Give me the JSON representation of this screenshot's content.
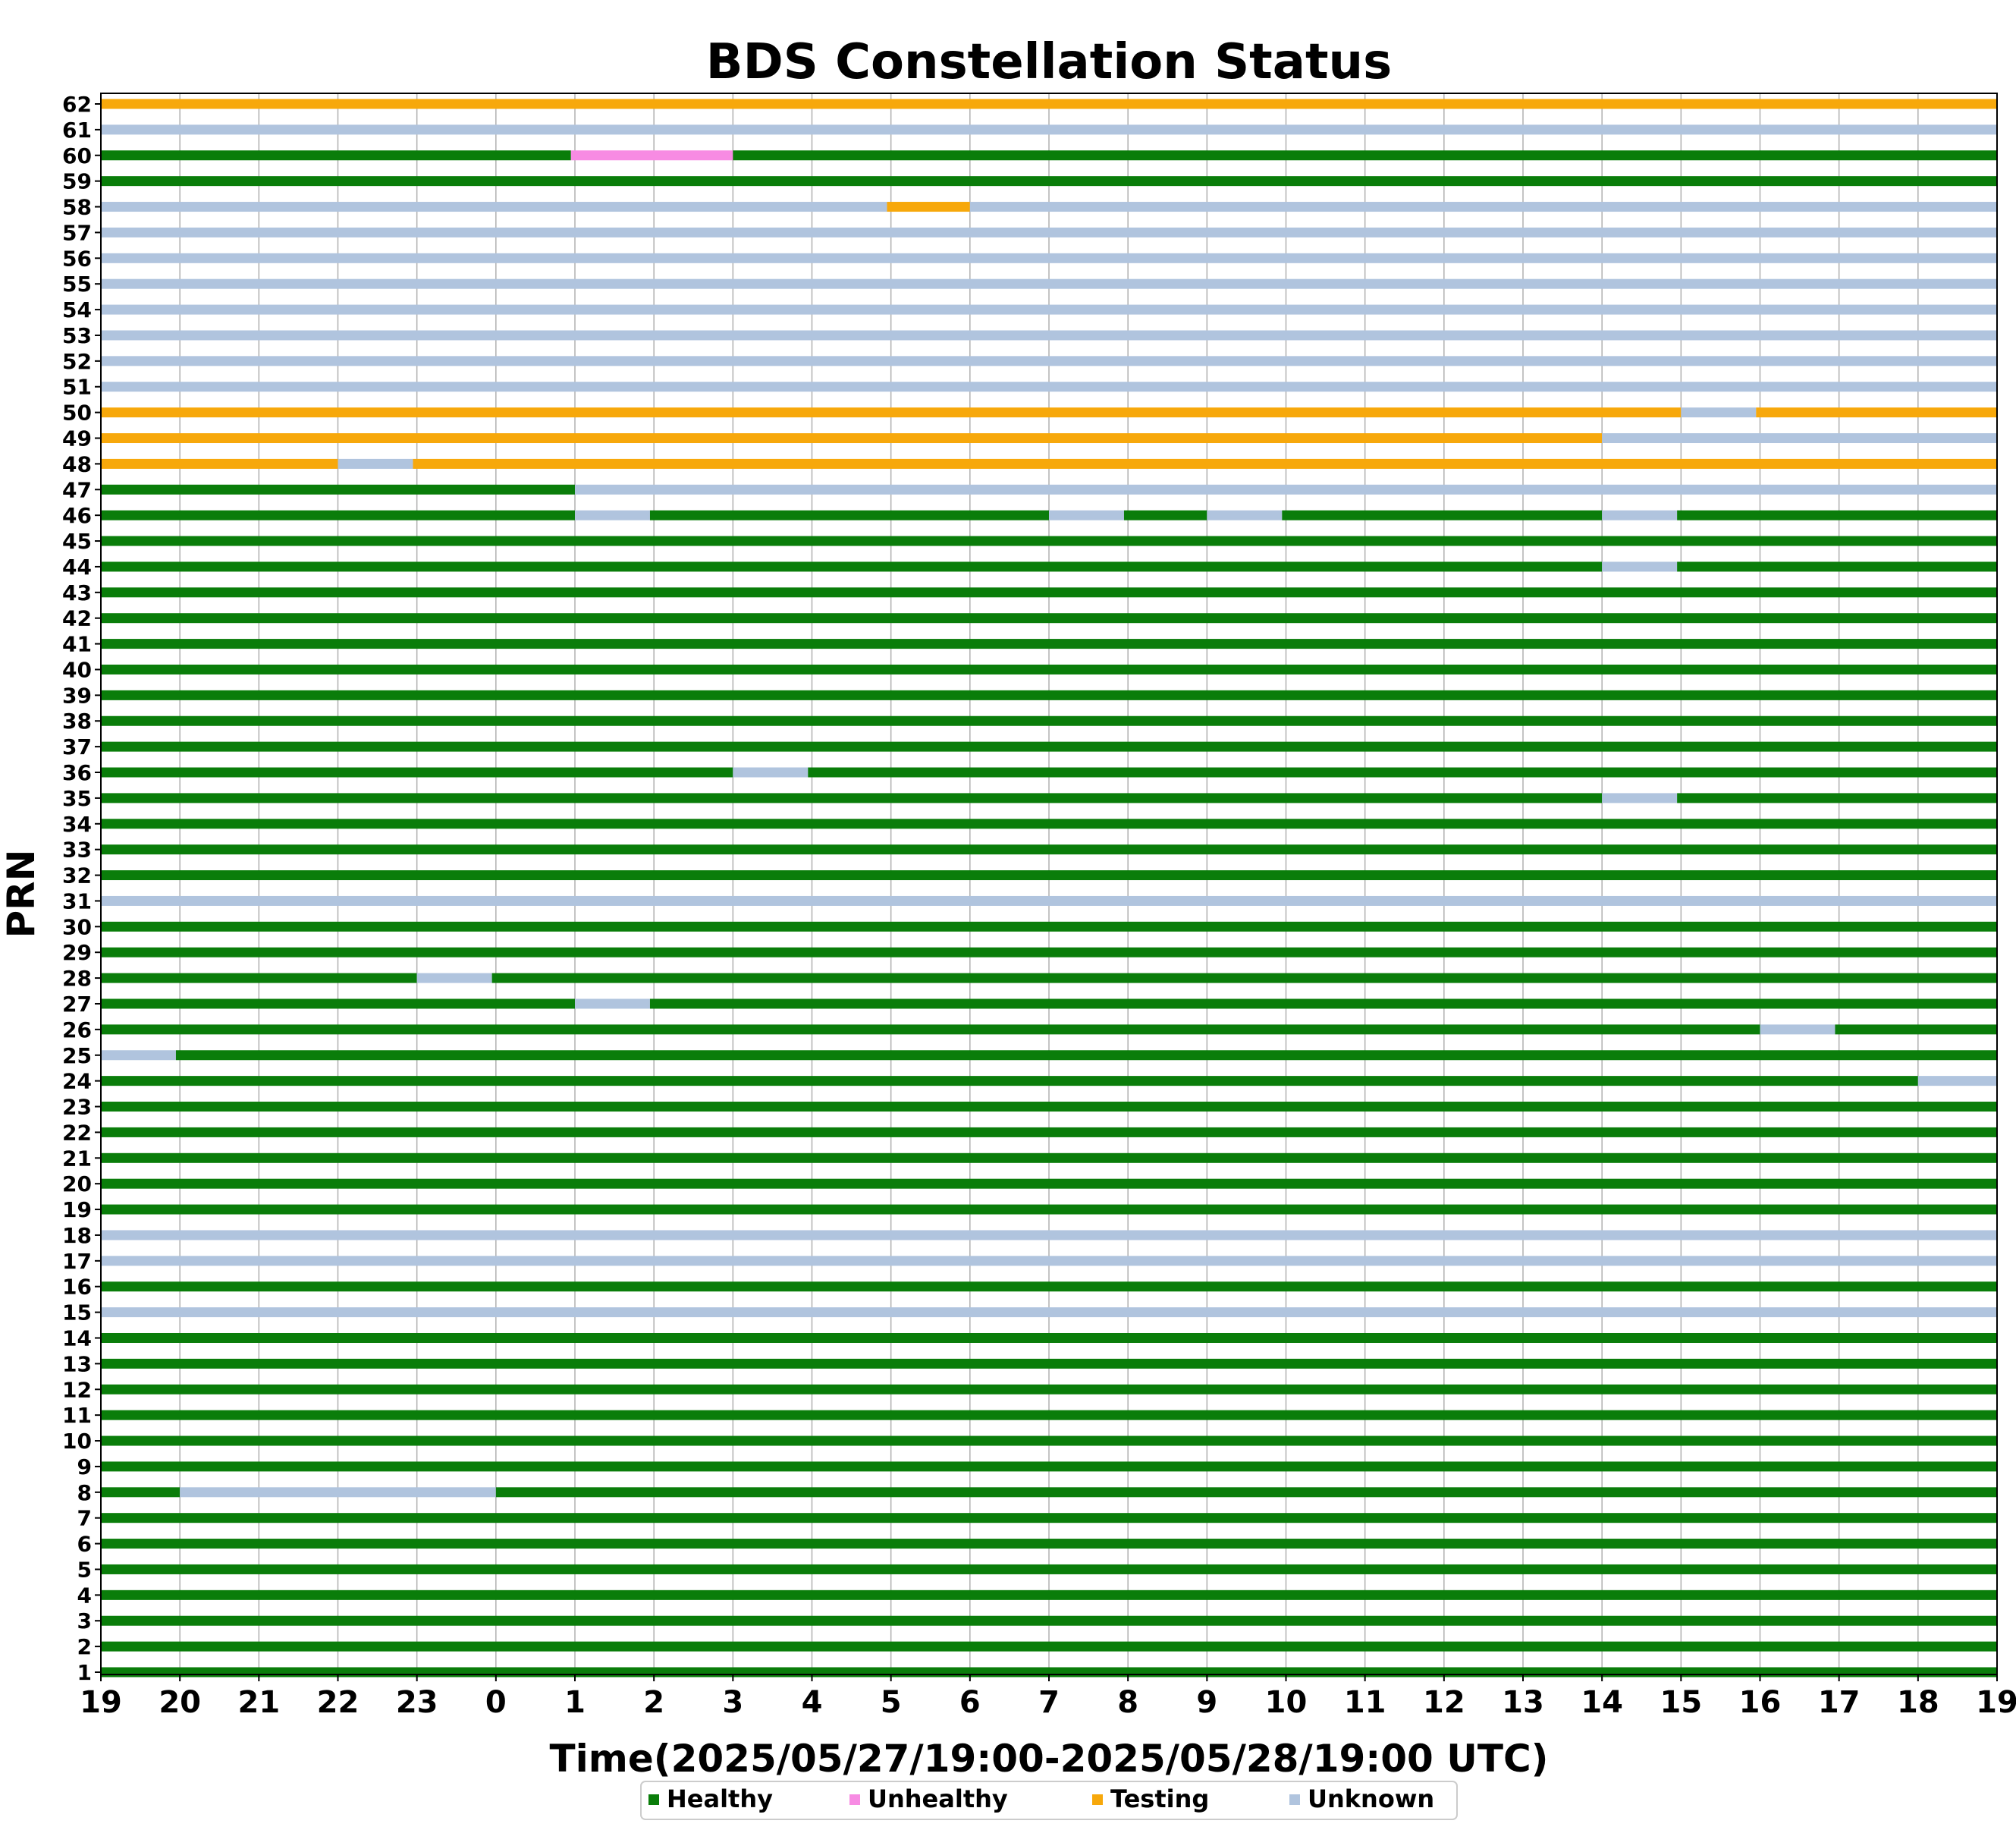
{
  "chart_data": {
    "type": "timeline",
    "title": "BDS Constellation Status",
    "xlabel": "Time(2025/05/27/19:00-2025/05/28/19:00 UTC)",
    "ylabel": "PRN",
    "x_tick_labels": [
      "19",
      "20",
      "21",
      "22",
      "23",
      "0",
      "1",
      "2",
      "3",
      "4",
      "5",
      "6",
      "7",
      "8",
      "9",
      "10",
      "11",
      "12",
      "13",
      "14",
      "15",
      "16",
      "17",
      "18",
      "19"
    ],
    "xlim_hours": [
      0,
      24
    ],
    "prns": [
      1,
      2,
      3,
      4,
      5,
      6,
      7,
      8,
      9,
      10,
      11,
      12,
      13,
      14,
      15,
      16,
      17,
      18,
      19,
      20,
      21,
      22,
      23,
      24,
      25,
      26,
      27,
      28,
      29,
      30,
      31,
      32,
      33,
      34,
      35,
      36,
      37,
      38,
      39,
      40,
      41,
      42,
      43,
      44,
      45,
      46,
      47,
      48,
      49,
      50,
      51,
      52,
      53,
      54,
      55,
      56,
      57,
      58,
      59,
      60,
      61,
      62
    ],
    "status_colors": {
      "Healthy": "#0a7d0a",
      "Unhealthy": "#f78be3",
      "Testing": "#f7a80b",
      "Unknown": "#b0c4de"
    },
    "legend": [
      "Healthy",
      "Unhealthy",
      "Testing",
      "Unknown"
    ],
    "legend_position": "bottom-center",
    "grid": "vertical",
    "note_units": "segments given as [start_hour_offset, end_hour_offset, status] relative to 2025/05/27 19:00 UTC",
    "rows": [
      {
        "prn": 1,
        "segments": [
          [
            0,
            24,
            "Healthy"
          ]
        ]
      },
      {
        "prn": 2,
        "segments": [
          [
            0,
            24,
            "Healthy"
          ]
        ]
      },
      {
        "prn": 3,
        "segments": [
          [
            0,
            24,
            "Healthy"
          ]
        ]
      },
      {
        "prn": 4,
        "segments": [
          [
            0,
            24,
            "Healthy"
          ]
        ]
      },
      {
        "prn": 5,
        "segments": [
          [
            0,
            24,
            "Healthy"
          ]
        ]
      },
      {
        "prn": 6,
        "segments": [
          [
            0,
            24,
            "Healthy"
          ]
        ]
      },
      {
        "prn": 7,
        "segments": [
          [
            0,
            24,
            "Healthy"
          ]
        ]
      },
      {
        "prn": 8,
        "segments": [
          [
            0,
            1,
            "Healthy"
          ],
          [
            1,
            5,
            "Unknown"
          ],
          [
            5,
            24,
            "Healthy"
          ]
        ]
      },
      {
        "prn": 9,
        "segments": [
          [
            0,
            24,
            "Healthy"
          ]
        ]
      },
      {
        "prn": 10,
        "segments": [
          [
            0,
            24,
            "Healthy"
          ]
        ]
      },
      {
        "prn": 11,
        "segments": [
          [
            0,
            24,
            "Healthy"
          ]
        ]
      },
      {
        "prn": 12,
        "segments": [
          [
            0,
            24,
            "Healthy"
          ]
        ]
      },
      {
        "prn": 13,
        "segments": [
          [
            0,
            24,
            "Healthy"
          ]
        ]
      },
      {
        "prn": 14,
        "segments": [
          [
            0,
            24,
            "Healthy"
          ]
        ]
      },
      {
        "prn": 15,
        "segments": [
          [
            0,
            24,
            "Unknown"
          ]
        ]
      },
      {
        "prn": 16,
        "segments": [
          [
            0,
            24,
            "Healthy"
          ]
        ]
      },
      {
        "prn": 17,
        "segments": [
          [
            0,
            24,
            "Unknown"
          ]
        ]
      },
      {
        "prn": 18,
        "segments": [
          [
            0,
            24,
            "Unknown"
          ]
        ]
      },
      {
        "prn": 19,
        "segments": [
          [
            0,
            24,
            "Healthy"
          ]
        ]
      },
      {
        "prn": 20,
        "segments": [
          [
            0,
            24,
            "Healthy"
          ]
        ]
      },
      {
        "prn": 21,
        "segments": [
          [
            0,
            24,
            "Healthy"
          ]
        ]
      },
      {
        "prn": 22,
        "segments": [
          [
            0,
            24,
            "Healthy"
          ]
        ]
      },
      {
        "prn": 23,
        "segments": [
          [
            0,
            24,
            "Healthy"
          ]
        ]
      },
      {
        "prn": 24,
        "segments": [
          [
            0,
            23,
            "Healthy"
          ],
          [
            23,
            24,
            "Unknown"
          ]
        ]
      },
      {
        "prn": 25,
        "segments": [
          [
            0,
            0.95,
            "Unknown"
          ],
          [
            0.95,
            24,
            "Healthy"
          ]
        ]
      },
      {
        "prn": 26,
        "segments": [
          [
            0,
            21,
            "Healthy"
          ],
          [
            21,
            21.95,
            "Unknown"
          ],
          [
            21.95,
            24,
            "Healthy"
          ]
        ]
      },
      {
        "prn": 27,
        "segments": [
          [
            0,
            6,
            "Healthy"
          ],
          [
            6,
            6.95,
            "Unknown"
          ],
          [
            6.95,
            24,
            "Healthy"
          ]
        ]
      },
      {
        "prn": 28,
        "segments": [
          [
            0,
            4,
            "Healthy"
          ],
          [
            4,
            4.95,
            "Unknown"
          ],
          [
            4.95,
            24,
            "Healthy"
          ]
        ]
      },
      {
        "prn": 29,
        "segments": [
          [
            0,
            24,
            "Healthy"
          ]
        ]
      },
      {
        "prn": 30,
        "segments": [
          [
            0,
            24,
            "Healthy"
          ]
        ]
      },
      {
        "prn": 31,
        "segments": [
          [
            0,
            24,
            "Unknown"
          ]
        ]
      },
      {
        "prn": 32,
        "segments": [
          [
            0,
            24,
            "Healthy"
          ]
        ]
      },
      {
        "prn": 33,
        "segments": [
          [
            0,
            24,
            "Healthy"
          ]
        ]
      },
      {
        "prn": 34,
        "segments": [
          [
            0,
            24,
            "Healthy"
          ]
        ]
      },
      {
        "prn": 35,
        "segments": [
          [
            0,
            19,
            "Healthy"
          ],
          [
            19,
            19.95,
            "Unknown"
          ],
          [
            19.95,
            24,
            "Healthy"
          ]
        ]
      },
      {
        "prn": 36,
        "segments": [
          [
            0,
            8,
            "Healthy"
          ],
          [
            8,
            8.95,
            "Unknown"
          ],
          [
            8.95,
            24,
            "Healthy"
          ]
        ]
      },
      {
        "prn": 37,
        "segments": [
          [
            0,
            24,
            "Healthy"
          ]
        ]
      },
      {
        "prn": 38,
        "segments": [
          [
            0,
            24,
            "Healthy"
          ]
        ]
      },
      {
        "prn": 39,
        "segments": [
          [
            0,
            24,
            "Healthy"
          ]
        ]
      },
      {
        "prn": 40,
        "segments": [
          [
            0,
            24,
            "Healthy"
          ]
        ]
      },
      {
        "prn": 41,
        "segments": [
          [
            0,
            24,
            "Healthy"
          ]
        ]
      },
      {
        "prn": 42,
        "segments": [
          [
            0,
            24,
            "Healthy"
          ]
        ]
      },
      {
        "prn": 43,
        "segments": [
          [
            0,
            24,
            "Healthy"
          ]
        ]
      },
      {
        "prn": 44,
        "segments": [
          [
            0,
            19,
            "Healthy"
          ],
          [
            19,
            19.95,
            "Unknown"
          ],
          [
            19.95,
            24,
            "Healthy"
          ]
        ]
      },
      {
        "prn": 45,
        "segments": [
          [
            0,
            24,
            "Healthy"
          ]
        ]
      },
      {
        "prn": 46,
        "segments": [
          [
            0,
            6,
            "Healthy"
          ],
          [
            6,
            6.95,
            "Unknown"
          ],
          [
            6.95,
            12,
            "Healthy"
          ],
          [
            12,
            12.95,
            "Unknown"
          ],
          [
            12.95,
            14,
            "Healthy"
          ],
          [
            14,
            14.95,
            "Unknown"
          ],
          [
            14.95,
            19,
            "Healthy"
          ],
          [
            19,
            19.95,
            "Unknown"
          ],
          [
            19.95,
            24,
            "Healthy"
          ]
        ]
      },
      {
        "prn": 47,
        "segments": [
          [
            0,
            6,
            "Healthy"
          ],
          [
            6,
            24,
            "Unknown"
          ]
        ]
      },
      {
        "prn": 48,
        "segments": [
          [
            0,
            3,
            "Testing"
          ],
          [
            3,
            3.95,
            "Unknown"
          ],
          [
            3.95,
            24,
            "Testing"
          ]
        ]
      },
      {
        "prn": 49,
        "segments": [
          [
            0,
            19,
            "Testing"
          ],
          [
            19,
            24,
            "Unknown"
          ]
        ]
      },
      {
        "prn": 50,
        "segments": [
          [
            0,
            20,
            "Testing"
          ],
          [
            20,
            20.95,
            "Unknown"
          ],
          [
            20.95,
            24,
            "Testing"
          ]
        ]
      },
      {
        "prn": 51,
        "segments": [
          [
            0,
            24,
            "Unknown"
          ]
        ]
      },
      {
        "prn": 52,
        "segments": [
          [
            0,
            24,
            "Unknown"
          ]
        ]
      },
      {
        "prn": 53,
        "segments": [
          [
            0,
            24,
            "Unknown"
          ]
        ]
      },
      {
        "prn": 54,
        "segments": [
          [
            0,
            24,
            "Unknown"
          ]
        ]
      },
      {
        "prn": 55,
        "segments": [
          [
            0,
            24,
            "Unknown"
          ]
        ]
      },
      {
        "prn": 56,
        "segments": [
          [
            0,
            24,
            "Unknown"
          ]
        ]
      },
      {
        "prn": 57,
        "segments": [
          [
            0,
            24,
            "Unknown"
          ]
        ]
      },
      {
        "prn": 58,
        "segments": [
          [
            0,
            9.95,
            "Unknown"
          ],
          [
            9.95,
            11,
            "Testing"
          ],
          [
            11,
            24,
            "Unknown"
          ]
        ]
      },
      {
        "prn": 59,
        "segments": [
          [
            0,
            24,
            "Healthy"
          ]
        ]
      },
      {
        "prn": 60,
        "segments": [
          [
            0,
            5.95,
            "Healthy"
          ],
          [
            5.95,
            8,
            "Unhealthy"
          ],
          [
            8,
            24,
            "Healthy"
          ]
        ]
      },
      {
        "prn": 61,
        "segments": [
          [
            0,
            24,
            "Unknown"
          ]
        ]
      },
      {
        "prn": 62,
        "segments": [
          [
            0,
            24,
            "Testing"
          ]
        ]
      }
    ]
  }
}
